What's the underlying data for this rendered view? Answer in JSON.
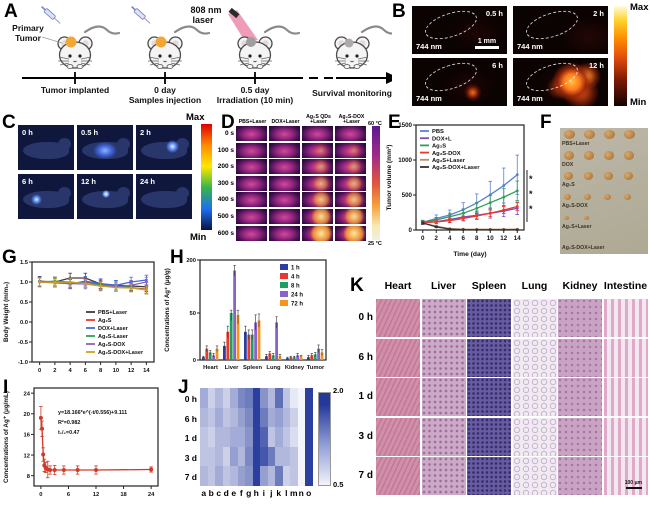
{
  "panels": {
    "A": {
      "label": "A",
      "primary_tumor": [
        "Primary",
        "Tumor"
      ],
      "laser": [
        "808 nm",
        "laser"
      ],
      "tumor_colors": [
        "#f0a735",
        "#f0a735",
        "#9e9e9e",
        "#ababab"
      ],
      "timeline": [
        {
          "t": "Tumor implanted",
          "s": ""
        },
        {
          "t": "0 day",
          "s": "Samples injection"
        },
        {
          "t": "0.5 day",
          "s": "Irradiation (10 min)"
        },
        {
          "t": "Survival monitoring",
          "s": ""
        }
      ]
    },
    "B": {
      "label": "B",
      "tiles": [
        {
          "time": "0.5 h",
          "wavelength": "744 nm",
          "scalebar": "1 mm"
        },
        {
          "time": "2 h",
          "wavelength": "744 nm",
          "scalebar": ""
        },
        {
          "time": "6 h",
          "wavelength": "744 nm",
          "scalebar": ""
        },
        {
          "time": "12 h",
          "wavelength": "744 nm",
          "scalebar": ""
        }
      ],
      "colorbar_max": "Max",
      "colorbar_min": "Min"
    },
    "C": {
      "label": "C",
      "times": [
        "0 h",
        "0.5 h",
        "2 h",
        "6 h",
        "12 h",
        "24 h"
      ],
      "colorbar_max": "Max",
      "colorbar_min": "Min"
    },
    "D": {
      "label": "D",
      "columns": [
        "PBS+Laser",
        "DOX+Laser",
        "Ag₂S QDs\n+Laser",
        "Ag₂S-DOX\n+Laser"
      ],
      "rows": [
        "0 s",
        "100 s",
        "200 s",
        "300 s",
        "400 s",
        "500 s",
        "600 s"
      ],
      "colorbar_max": "60 °C",
      "colorbar_min": "25 °C"
    },
    "E": {
      "label": "E"
    },
    "F": {
      "label": "F",
      "rows": [
        {
          "label": "PBS+Laser",
          "tumor_count": 4,
          "tumor_size": 11
        },
        {
          "label": "DOX",
          "tumor_count": 4,
          "tumor_size": 10
        },
        {
          "label": "Ag₂S",
          "tumor_count": 4,
          "tumor_size": 9
        },
        {
          "label": "Ag₂S-DOX",
          "tumor_count": 4,
          "tumor_size": 7
        },
        {
          "label": "Ag₂S+Laser",
          "tumor_count": 2,
          "tumor_size": 5
        },
        {
          "label": "Ag₂S-DOX+Laser",
          "tumor_count": 0,
          "tumor_size": 0
        }
      ]
    },
    "G": {
      "label": "G"
    },
    "H": {
      "label": "H"
    },
    "I": {
      "label": "I"
    },
    "J": {
      "label": "J"
    },
    "K": {
      "label": "K",
      "columns": [
        "Heart",
        "Liver",
        "Spleen",
        "Lung",
        "Kidney",
        "Intestine"
      ],
      "rows": [
        "0 h",
        "6 h",
        "1 d",
        "3 d",
        "7 d"
      ],
      "scalebar": "100 μm"
    }
  },
  "chart_data": [
    {
      "id": "E",
      "type": "line",
      "xlabel": "Time (day)",
      "ylabel": "Tumor volume (mm³)",
      "x": [
        0,
        2,
        4,
        6,
        8,
        10,
        12,
        14
      ],
      "xlim": [
        -1,
        15
      ],
      "ylim": [
        0,
        1500
      ],
      "xticks": [
        0,
        2,
        4,
        6,
        8,
        10,
        12,
        14
      ],
      "yticks": [
        0,
        500,
        1000,
        1500
      ],
      "legend_position": "top-left",
      "series": [
        {
          "name": "PBS",
          "color": "#5b7fd4",
          "values": [
            110,
            165,
            215,
            290,
            385,
            505,
            635,
            790
          ],
          "err": [
            30,
            50,
            70,
            100,
            130,
            190,
            250,
            280
          ]
        },
        {
          "name": "DOX+L",
          "color": "#7a4fb5",
          "values": [
            105,
            120,
            150,
            185,
            210,
            240,
            270,
            310
          ],
          "err": [
            25,
            30,
            40,
            50,
            60,
            70,
            80,
            90
          ]
        },
        {
          "name": "Ag₂S",
          "color": "#2f9e57",
          "values": [
            108,
            145,
            190,
            240,
            310,
            390,
            470,
            560
          ],
          "err": [
            25,
            35,
            50,
            60,
            80,
            100,
            120,
            140
          ]
        },
        {
          "name": "Ag₂S-DOX",
          "color": "#e8392e",
          "values": [
            105,
            115,
            135,
            165,
            200,
            240,
            285,
            335
          ],
          "err": [
            20,
            25,
            30,
            35,
            40,
            45,
            50,
            55
          ]
        },
        {
          "name": "Ag₂S+Laser",
          "color": "#b98f6a",
          "values": [
            100,
            55,
            20,
            12,
            10,
            10,
            10,
            12
          ],
          "err": [
            15,
            10,
            6,
            5,
            4,
            4,
            4,
            4
          ]
        },
        {
          "name": "Ag₂S-DOX+Laser",
          "color": "#333333",
          "values": [
            100,
            45,
            12,
            5,
            4,
            4,
            4,
            4
          ],
          "err": [
            15,
            8,
            5,
            3,
            3,
            3,
            3,
            3
          ]
        }
      ],
      "sig_marks": [
        "*",
        "*",
        "*"
      ]
    },
    {
      "id": "G",
      "type": "line",
      "xlabel": "",
      "ylabel": "Body Weight (m/m₀)",
      "x": [
        0,
        2,
        4,
        6,
        8,
        10,
        12,
        14
      ],
      "xlim": [
        -1,
        15
      ],
      "ylim": [
        -1.0,
        1.5
      ],
      "xticks": [
        0,
        2,
        4,
        6,
        8,
        10,
        12,
        14
      ],
      "yticks": [
        -1.0,
        -0.5,
        0.0,
        0.5,
        1.0,
        1.5
      ],
      "legend_position": "right-middle",
      "series": [
        {
          "name": "PBS+Laser",
          "color": "#3d3d3d",
          "values": [
            1.02,
            1.0,
            1.1,
            1.1,
            0.95,
            0.92,
            0.9,
            0.88
          ],
          "err": 0.12
        },
        {
          "name": "Ag₂S",
          "color": "#e8392e",
          "values": [
            1.0,
            0.98,
            0.96,
            1.0,
            0.94,
            0.9,
            0.86,
            0.82
          ],
          "err": 0.1
        },
        {
          "name": "DOX+Laser",
          "color": "#3f6ed8",
          "values": [
            1.0,
            1.0,
            0.95,
            1.02,
            0.96,
            0.92,
            1.0,
            1.05
          ],
          "err": 0.12
        },
        {
          "name": "Ag₂S-Laser",
          "color": "#2f9e57",
          "values": [
            1.0,
            1.02,
            1.0,
            0.96,
            0.92,
            0.9,
            0.86,
            0.8
          ],
          "err": 0.1
        },
        {
          "name": "Ag₂S-DOX",
          "color": "#8d5fc4",
          "values": [
            1.0,
            1.0,
            0.96,
            0.95,
            0.9,
            0.88,
            0.92,
            1.0
          ],
          "err": 0.12
        },
        {
          "name": "Ag₂S-DOX+Laser",
          "color": "#c9a227",
          "values": [
            1.0,
            0.99,
            1.0,
            0.96,
            0.9,
            0.86,
            0.85,
            0.8
          ],
          "err": 0.1
        }
      ]
    },
    {
      "id": "H",
      "type": "bar",
      "ylabel": "Concentrations of Ag⁺ (μg/g)",
      "categories": [
        "Heart",
        "Liver",
        "Spleen",
        "Lung",
        "Kidney",
        "Tumor"
      ],
      "yticks": [
        0,
        50,
        200
      ],
      "axis_break": 50,
      "legend_position": "top-right",
      "series": [
        {
          "name": "1 h",
          "color": "#2c3e9e",
          "values": [
            3,
            15,
            30,
            4,
            2,
            3
          ],
          "err": [
            1,
            4,
            6,
            2,
            1,
            2
          ]
        },
        {
          "name": "4 h",
          "color": "#e8392e",
          "values": [
            12,
            30,
            27,
            7,
            3,
            5
          ],
          "err": [
            3,
            6,
            5,
            2,
            1,
            2
          ]
        },
        {
          "name": "8 h",
          "color": "#1f9e63",
          "values": [
            8,
            50,
            27,
            5,
            3,
            6
          ],
          "err": [
            2,
            8,
            5,
            2,
            1,
            2
          ]
        },
        {
          "name": "24 h",
          "color": "#8a63c9",
          "values": [
            5,
            170,
            40,
            40,
            5,
            12
          ],
          "err": [
            2,
            15,
            8,
            6,
            2,
            4
          ]
        },
        {
          "name": "72 h",
          "color": "#f7941d",
          "values": [
            12,
            48,
            42,
            4,
            4,
            8
          ],
          "err": [
            3,
            10,
            7,
            2,
            1,
            3
          ]
        }
      ]
    },
    {
      "id": "I",
      "type": "scatter-line",
      "ylabel": "Concentrations of Ag⁺ (μg/mL)",
      "x": [
        0,
        0.25,
        0.5,
        0.75,
        1,
        1.5,
        2,
        3,
        5,
        8,
        12,
        24
      ],
      "xlim": [
        -1.5,
        25.5
      ],
      "ylim": [
        6,
        25
      ],
      "xticks": [
        0,
        6,
        12,
        18,
        24
      ],
      "yticks": [
        8,
        12,
        16,
        20,
        24
      ],
      "series": [
        {
          "name": "Ag⁺",
          "color": "#cf3a2b",
          "marker_r": 2,
          "values": [
            19.2,
            17.1,
            12.1,
            10.0,
            9.6,
            9.2,
            9.1,
            9.1,
            9.1,
            9.1,
            9.1,
            9.2
          ],
          "err": [
            2.2,
            1.5,
            1.3,
            1.2,
            1.0,
            1.6,
            0.8,
            0.9,
            0.8,
            0.8,
            0.8,
            0.5
          ]
        }
      ],
      "annotations": [
        "y=18.166*e^(-t/0.556)+9.111",
        "R²=0.982",
        "t₁/₂=0.47"
      ]
    },
    {
      "id": "J",
      "type": "heatmap",
      "rows": [
        "0 h",
        "6 h",
        "1 d",
        "3 d",
        "7 d"
      ],
      "columns": [
        "a",
        "b",
        "c",
        "d",
        "e",
        "f",
        "g",
        "h",
        "i",
        "j",
        "k",
        "l",
        "m",
        "n",
        "o"
      ],
      "scale": {
        "min": 0.5,
        "max": 2.0,
        "min_color": "#f4f5fb",
        "max_color": "#2a3f9e"
      },
      "values": [
        [
          1.1,
          0.8,
          1.0,
          0.8,
          1.1,
          1.4,
          1.5,
          2.0,
          1.3,
          1.0,
          1.6,
          0.9,
          0.6,
          0.5,
          2.0
        ],
        [
          1.0,
          0.9,
          1.1,
          0.9,
          1.0,
          1.2,
          1.4,
          2.0,
          1.5,
          1.1,
          1.2,
          1.0,
          0.8,
          0.5,
          2.0
        ],
        [
          0.9,
          0.8,
          1.0,
          1.0,
          1.1,
          1.1,
          1.3,
          2.0,
          1.7,
          0.9,
          1.1,
          0.9,
          0.7,
          0.5,
          2.0
        ],
        [
          0.9,
          0.9,
          1.0,
          0.8,
          1.2,
          1.0,
          1.4,
          2.0,
          1.8,
          1.5,
          1.0,
          1.0,
          0.9,
          0.5,
          2.0
        ],
        [
          1.0,
          0.9,
          1.1,
          0.9,
          1.0,
          1.2,
          1.3,
          2.0,
          1.2,
          1.0,
          1.5,
          0.8,
          0.9,
          0.5,
          2.0
        ]
      ]
    }
  ]
}
